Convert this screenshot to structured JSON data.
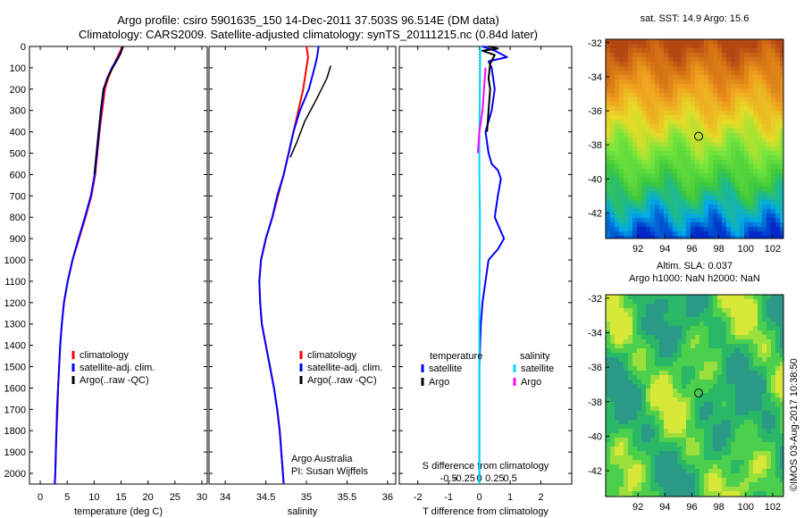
{
  "title": {
    "line1": "Argo profile: csiro 5901635_150 14-Dec-2011 37.503S 96.514E (DM data)",
    "line2": "Climatology: CARS2009. Satellite-adjusted climatology: synTS_20111215.nc (0.84d later)"
  },
  "colors": {
    "climatology": "#ff0000",
    "satellite": "#0000ff",
    "argo": "#000000",
    "sal_sat": "#00d8ff",
    "sal_argo": "#ff00ff"
  },
  "depth_axis": {
    "ticks": [
      0,
      100,
      200,
      300,
      400,
      500,
      600,
      700,
      800,
      900,
      1000,
      1100,
      1200,
      1300,
      1400,
      1500,
      1600,
      1700,
      1800,
      1900,
      2000
    ],
    "range": [
      0,
      2050
    ]
  },
  "chart_data": [
    {
      "type": "line",
      "xlabel": "temperature (deg C)",
      "xlim": [
        -2,
        31
      ],
      "xticks": [
        0,
        5,
        10,
        15,
        20,
        25,
        30
      ],
      "legend": [
        "climatology",
        "satellite-adj. clim.",
        "Argo(..raw -QC)"
      ],
      "series": [
        {
          "name": "climatology",
          "color": "#ff0000",
          "width": 2,
          "points": [
            [
              15.2,
              0
            ],
            [
              14.8,
              25
            ],
            [
              14.3,
              50
            ],
            [
              13.4,
              100
            ],
            [
              12.6,
              150
            ],
            [
              12.0,
              200
            ],
            [
              11.5,
              300
            ],
            [
              11.0,
              400
            ],
            [
              10.6,
              500
            ],
            [
              10.2,
              600
            ],
            [
              9.5,
              700
            ],
            [
              8.4,
              800
            ],
            [
              7.2,
              900
            ],
            [
              6.0,
              1000
            ],
            [
              5.1,
              1100
            ],
            [
              4.4,
              1200
            ],
            [
              4.0,
              1300
            ],
            [
              3.7,
              1400
            ],
            [
              3.5,
              1500
            ],
            [
              3.3,
              1600
            ],
            [
              3.2,
              1700
            ],
            [
              3.0,
              1800
            ],
            [
              2.9,
              1900
            ],
            [
              2.8,
              2000
            ],
            [
              2.7,
              2050
            ]
          ]
        },
        {
          "name": "satellite-adj. clim.",
          "color": "#0000ff",
          "width": 2,
          "points": [
            [
              15.4,
              0
            ],
            [
              15.0,
              25
            ],
            [
              14.5,
              50
            ],
            [
              13.3,
              100
            ],
            [
              12.4,
              150
            ],
            [
              11.8,
              200
            ],
            [
              11.3,
              300
            ],
            [
              10.9,
              400
            ],
            [
              10.5,
              500
            ],
            [
              10.1,
              600
            ],
            [
              9.4,
              700
            ],
            [
              8.3,
              800
            ],
            [
              7.1,
              900
            ],
            [
              6.0,
              1000
            ],
            [
              5.1,
              1100
            ],
            [
              4.4,
              1200
            ],
            [
              4.0,
              1300
            ],
            [
              3.7,
              1400
            ],
            [
              3.5,
              1500
            ],
            [
              3.3,
              1600
            ],
            [
              3.1,
              1700
            ],
            [
              3.0,
              1800
            ],
            [
              2.9,
              1900
            ],
            [
              2.8,
              2000
            ],
            [
              2.7,
              2050
            ]
          ]
        },
        {
          "name": "Argo(..raw -QC)",
          "color": "#000000",
          "width": 1.5,
          "points": [
            [
              15.3,
              0
            ],
            [
              15.0,
              30
            ],
            [
              14.4,
              60
            ],
            [
              12.8,
              130
            ],
            [
              11.7,
              200
            ],
            [
              11.2,
              300
            ],
            [
              10.8,
              400
            ],
            [
              10.4,
              500
            ],
            [
              10.0,
              600
            ]
          ]
        }
      ]
    },
    {
      "type": "line",
      "xlabel": "salinity",
      "xlim": [
        33.8,
        36.1
      ],
      "xticks": [
        34,
        34.5,
        35,
        35.5,
        36
      ],
      "legend": [
        "climatology",
        "satellite-adj. clim.",
        "Argo(..raw -QC)"
      ],
      "annotation": [
        "Argo Australia",
        "PI: Susan Wijffels"
      ],
      "series": [
        {
          "name": "climatology",
          "color": "#ff0000",
          "width": 2,
          "points": [
            [
              35.0,
              0
            ],
            [
              35.02,
              50
            ],
            [
              35.0,
              100
            ],
            [
              34.96,
              200
            ],
            [
              34.9,
              300
            ],
            [
              34.84,
              400
            ],
            [
              34.78,
              500
            ],
            [
              34.72,
              600
            ],
            [
              34.65,
              700
            ],
            [
              34.58,
              800
            ],
            [
              34.5,
              900
            ],
            [
              34.44,
              1000
            ],
            [
              34.42,
              1100
            ],
            [
              34.43,
              1200
            ],
            [
              34.45,
              1300
            ],
            [
              34.5,
              1400
            ],
            [
              34.55,
              1500
            ],
            [
              34.6,
              1600
            ],
            [
              34.64,
              1700
            ],
            [
              34.67,
              1800
            ],
            [
              34.69,
              1900
            ],
            [
              34.71,
              2000
            ],
            [
              34.72,
              2050
            ]
          ]
        },
        {
          "name": "satellite-adj. clim.",
          "color": "#0000ff",
          "width": 2,
          "points": [
            [
              35.15,
              0
            ],
            [
              35.13,
              50
            ],
            [
              35.1,
              100
            ],
            [
              35.03,
              200
            ],
            [
              34.92,
              300
            ],
            [
              34.84,
              400
            ],
            [
              34.78,
              500
            ],
            [
              34.72,
              600
            ],
            [
              34.64,
              700
            ],
            [
              34.58,
              800
            ],
            [
              34.5,
              900
            ],
            [
              34.44,
              1000
            ],
            [
              34.42,
              1100
            ],
            [
              34.43,
              1200
            ],
            [
              34.45,
              1300
            ],
            [
              34.5,
              1400
            ],
            [
              34.55,
              1500
            ],
            [
              34.6,
              1600
            ],
            [
              34.64,
              1700
            ],
            [
              34.67,
              1800
            ],
            [
              34.69,
              1900
            ],
            [
              34.71,
              2000
            ],
            [
              34.72,
              2050
            ]
          ]
        },
        {
          "name": "Argo(..raw -QC)",
          "color": "#000000",
          "width": 1.5,
          "points": [
            [
              35.3,
              90
            ],
            [
              35.25,
              150
            ],
            [
              35.12,
              250
            ],
            [
              34.98,
              350
            ],
            [
              34.88,
              450
            ],
            [
              34.8,
              520
            ]
          ]
        }
      ]
    },
    {
      "type": "line",
      "xlabel": "T difference from climatology",
      "top_label": "S difference from climatology",
      "xlim": [
        -2.6,
        3.0
      ],
      "xticks": [
        -2,
        -1,
        0,
        1,
        2
      ],
      "xtick_labels": [
        "-2",
        "-1",
        "0",
        "1",
        "2"
      ],
      "sticks": [
        -0.5,
        -0.25,
        0,
        0.25,
        0.5
      ],
      "stick_labels": [
        "-0.5",
        "-0.25",
        "0",
        "0.25",
        "0.5"
      ],
      "legend_groups": [
        {
          "heading": "temperature",
          "items": [
            "satellite",
            "Argo"
          ]
        },
        {
          "heading": "salinity",
          "items": [
            "satellite",
            "Argo"
          ]
        }
      ],
      "series": [
        {
          "name": "temperature satellite",
          "color": "#0000ff",
          "width": 2,
          "points": [
            [
              0.1,
              0
            ],
            [
              0.5,
              20
            ],
            [
              0.9,
              50
            ],
            [
              0.3,
              70
            ],
            [
              0.4,
              100
            ],
            [
              0.5,
              200
            ],
            [
              0.4,
              300
            ],
            [
              0.2,
              400
            ],
            [
              0.3,
              500
            ],
            [
              0.4,
              550
            ],
            [
              0.6,
              580
            ],
            [
              0.7,
              620
            ],
            [
              0.6,
              700
            ],
            [
              0.5,
              800
            ],
            [
              0.8,
              900
            ],
            [
              0.6,
              950
            ],
            [
              0.3,
              1000
            ],
            [
              0.2,
              1100
            ],
            [
              0.1,
              1200
            ],
            [
              0.05,
              1300
            ],
            [
              0.0,
              1500
            ],
            [
              0.0,
              2050
            ]
          ]
        },
        {
          "name": "temperature Argo",
          "color": "#000000",
          "width": 2,
          "points": [
            [
              0.3,
              0
            ],
            [
              0.6,
              10
            ],
            [
              0.1,
              20
            ],
            [
              0.5,
              40
            ],
            [
              0.35,
              80
            ],
            [
              0.3,
              150
            ],
            [
              0.35,
              200
            ],
            [
              0.3,
              300
            ],
            [
              0.25,
              400
            ]
          ]
        },
        {
          "name": "salinity satellite",
          "color": "#00d8ff",
          "width": 2,
          "points": [
            [
              0.03,
              0
            ],
            [
              0.02,
              200
            ],
            [
              0.0,
              400
            ],
            [
              0.0,
              600
            ],
            [
              0.02,
              800
            ],
            [
              0.01,
              1000
            ],
            [
              0.0,
              1200
            ],
            [
              0.0,
              2050
            ]
          ]
        },
        {
          "name": "salinity Argo",
          "color": "#ff00ff",
          "width": 2,
          "points": [
            [
              0.2,
              100
            ],
            [
              0.15,
              200
            ],
            [
              0.1,
              300
            ],
            [
              0.0,
              400
            ],
            [
              -0.05,
              500
            ]
          ]
        }
      ]
    }
  ],
  "maps": [
    {
      "title_lines": [
        "sat. SST: 14.9  Argo: 15.6"
      ],
      "kind": "sst",
      "xlim": [
        89.6,
        102.8
      ],
      "ylim": [
        -43.5,
        -31.8
      ],
      "xticks": [
        92,
        94,
        96,
        98,
        100,
        102
      ],
      "yticks": [
        -32,
        -34,
        -36,
        -38,
        -40,
        -42
      ],
      "marker": [
        96.5,
        -37.5
      ]
    },
    {
      "title_lines": [
        "Altim. SLA: 0.037",
        "Argo h1000: NaN h2000: NaN"
      ],
      "kind": "sla",
      "xlim": [
        89.6,
        102.8
      ],
      "ylim": [
        -43.5,
        -31.8
      ],
      "xticks": [
        92,
        94,
        96,
        98,
        100,
        102
      ],
      "yticks": [
        -32,
        -34,
        -36,
        -38,
        -40,
        -42
      ],
      "marker": [
        96.5,
        -37.5
      ]
    }
  ],
  "footer": "©IMOS 03-Aug-2017 10:38:50"
}
